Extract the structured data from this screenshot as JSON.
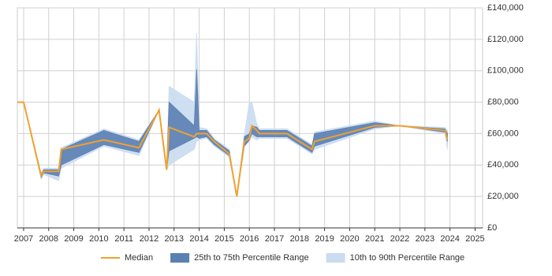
{
  "chart_data": {
    "type": "line",
    "x": [
      2006.75,
      2007.0,
      2007.7,
      2007.8,
      2008.4,
      2008.5,
      2010.2,
      2011.6,
      2012.4,
      2012.7,
      2012.8,
      2013.8,
      2013.9,
      2014.0,
      2014.3,
      2014.6,
      2015.2,
      2015.5,
      2015.8,
      2016.0,
      2016.1,
      2016.3,
      2016.4,
      2017.5,
      2018.5,
      2018.6,
      2021.0,
      2022.0,
      2023.8,
      2023.9
    ],
    "series": [
      {
        "name": "10th to 90th Percentile Range",
        "color": "#c9dcf0",
        "low": [
          80000,
          80000,
          31000,
          34000,
          30000,
          38000,
          52000,
          46000,
          75000,
          37000,
          40000,
          50000,
          55000,
          56000,
          57000,
          52000,
          45000,
          20000,
          52000,
          55000,
          58000,
          56000,
          57000,
          57000,
          47000,
          50000,
          63000,
          65000,
          60000,
          50000
        ],
        "high": [
          80000,
          80000,
          35000,
          38000,
          38000,
          51000,
          63000,
          56000,
          75000,
          37000,
          90000,
          80000,
          124000,
          64000,
          63000,
          57000,
          50000,
          20000,
          59000,
          80000,
          80000,
          66000,
          63000,
          63000,
          53000,
          61000,
          68000,
          65000,
          64000,
          62000
        ]
      },
      {
        "name": "25th to 75th Percentile Range",
        "color": "#5b80b2",
        "low": [
          80000,
          80000,
          32000,
          35000,
          33000,
          40000,
          53000,
          48000,
          75000,
          37000,
          49000,
          57000,
          58000,
          57000,
          58000,
          53000,
          46000,
          20000,
          52000,
          56000,
          60000,
          58000,
          58000,
          58000,
          48000,
          52000,
          64000,
          65000,
          61000,
          55000
        ],
        "high": [
          80000,
          80000,
          34000,
          37000,
          37000,
          50000,
          62000,
          55000,
          75000,
          37000,
          80000,
          65000,
          101000,
          62000,
          62000,
          56000,
          49000,
          20000,
          58000,
          60000,
          65000,
          64000,
          62000,
          62000,
          52000,
          60000,
          67000,
          65000,
          63000,
          60000
        ]
      },
      {
        "name": "Median",
        "color": "#f0a030",
        "values": [
          80000,
          80000,
          33000,
          36000,
          36000,
          50000,
          56000,
          51000,
          75000,
          37000,
          64000,
          58000,
          60000,
          60000,
          60000,
          55000,
          47000,
          20000,
          55000,
          57000,
          65000,
          62000,
          60000,
          60000,
          50000,
          55000,
          65000,
          65000,
          62000,
          56000
        ]
      }
    ],
    "legend_order": [
      2,
      1,
      0
    ],
    "xlim": [
      2006.75,
      2025.3
    ],
    "xticks": [
      2007,
      2008,
      2009,
      2010,
      2011,
      2012,
      2013,
      2014,
      2015,
      2016,
      2017,
      2018,
      2019,
      2020,
      2021,
      2022,
      2023,
      2024,
      2025
    ],
    "ylim": [
      0,
      140000
    ],
    "yticks": [
      {
        "value": 0,
        "label": "£0"
      },
      {
        "value": 20000,
        "label": "£20,000"
      },
      {
        "value": 40000,
        "label": "£40,000"
      },
      {
        "value": 60000,
        "label": "£60,000"
      },
      {
        "value": 80000,
        "label": "£80,000"
      },
      {
        "value": 100000,
        "label": "£100,000"
      },
      {
        "value": 120000,
        "label": "£120,000"
      },
      {
        "value": 140000,
        "label": "£140,000"
      }
    ],
    "grid": true
  }
}
